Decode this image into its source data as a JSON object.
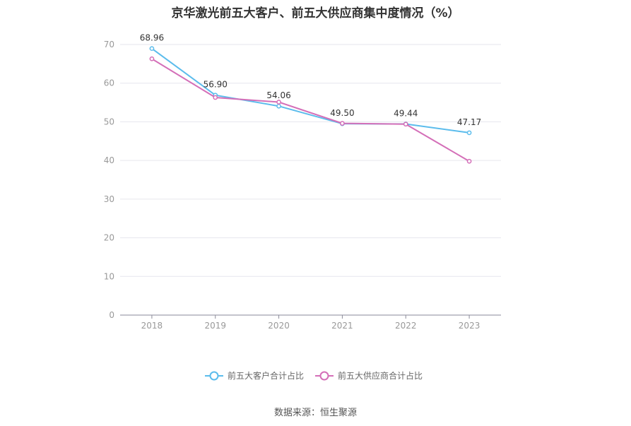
{
  "chart_data": {
    "type": "line",
    "title": "京华激光前五大客户、前五大供应商集中度情况（%）",
    "categories": [
      "2018",
      "2019",
      "2020",
      "2021",
      "2022",
      "2023"
    ],
    "series": [
      {
        "name": "前五大客户合计占比",
        "color": "#5bbcec",
        "values": [
          68.96,
          56.9,
          54.06,
          49.5,
          49.44,
          47.17
        ],
        "labels": [
          "68.96",
          "56.90",
          "54.06",
          "49.50",
          "49.44",
          "47.17"
        ]
      },
      {
        "name": "前五大供应商合计占比",
        "color": "#d46fb8",
        "values": [
          66.3,
          56.3,
          55.1,
          49.6,
          49.4,
          39.8
        ]
      }
    ],
    "yticks": [
      "0",
      "10",
      "20",
      "30",
      "40",
      "50",
      "60",
      "70"
    ],
    "ylim": [
      0,
      70
    ],
    "grid": true,
    "legend_position": "bottom"
  },
  "source": "数据来源：恒生聚源"
}
